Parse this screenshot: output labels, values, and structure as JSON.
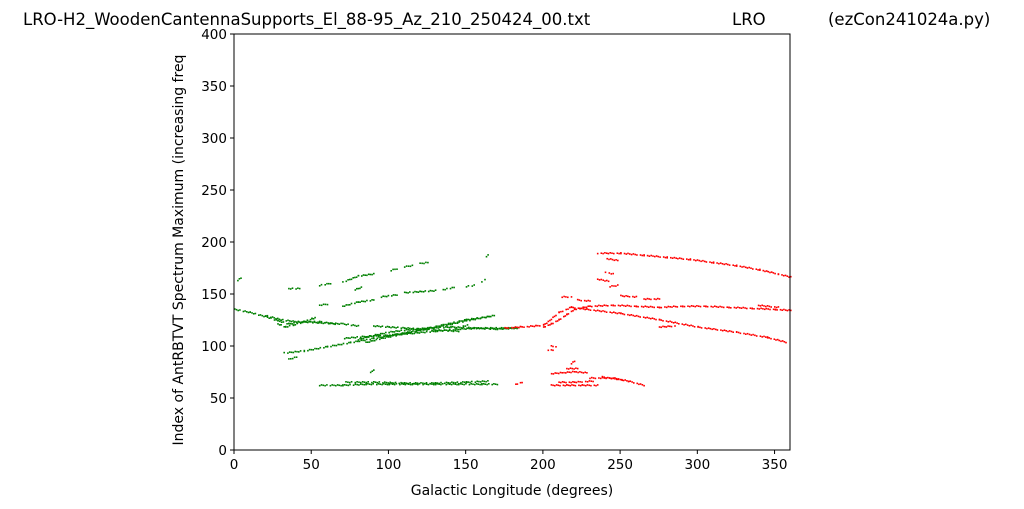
{
  "header": {
    "filename": "LRO-H2_WoodenCantennaSupports_El_88-95_Az_210_250424_00.txt",
    "station": "LRO",
    "program": "(ezCon241024a.py)"
  },
  "chart_data": {
    "type": "scatter",
    "title": "",
    "xlabel": "Galactic Longitude (degrees)",
    "ylabel": "Index of AntRBTVT Spectrum Maximum (increasing freq",
    "xlim": [
      0,
      360
    ],
    "ylim": [
      0,
      400
    ],
    "xticks": [
      0,
      50,
      100,
      150,
      200,
      250,
      300,
      350
    ],
    "yticks": [
      0,
      50,
      100,
      150,
      200,
      250,
      300,
      350,
      400
    ],
    "grid": false,
    "colors": {
      "green": "#008000",
      "red": "#ff0000"
    },
    "series": [
      {
        "color": "green",
        "traces": [
          [
            [
              0,
              136
            ],
            [
              10,
              133
            ],
            [
              20,
              129
            ],
            [
              28,
              125
            ],
            [
              35,
              122
            ],
            [
              45,
              124
            ],
            [
              55,
              123
            ],
            [
              70,
              122
            ],
            [
              80,
              120
            ]
          ],
          [
            [
              28,
              122
            ],
            [
              33,
              119
            ],
            [
              38,
              121
            ],
            [
              45,
              124
            ],
            [
              50,
              127
            ],
            [
              53,
              128
            ]
          ],
          [
            [
              20,
              130
            ],
            [
              30,
              126
            ],
            [
              40,
              124
            ],
            [
              55,
              124
            ],
            [
              65,
              122
            ]
          ],
          [
            [
              32,
              94
            ],
            [
              45,
              96
            ],
            [
              60,
              100
            ],
            [
              75,
              104
            ],
            [
              90,
              108
            ],
            [
              105,
              112
            ],
            [
              120,
              116
            ],
            [
              135,
              120
            ],
            [
              150,
              125
            ],
            [
              168,
              130
            ]
          ],
          [
            [
              70,
              108
            ],
            [
              85,
              110
            ],
            [
              100,
              111
            ],
            [
              115,
              113
            ],
            [
              130,
              115
            ],
            [
              145,
              117
            ],
            [
              160,
              118
            ],
            [
              175,
              118
            ],
            [
              185,
              118
            ]
          ],
          [
            [
              80,
              107
            ],
            [
              90,
              111
            ],
            [
              100,
              114
            ],
            [
              110,
              116
            ],
            [
              125,
              118
            ],
            [
              140,
              119
            ],
            [
              155,
              118
            ],
            [
              170,
              117
            ],
            [
              182,
              118
            ]
          ],
          [
            [
              85,
              104
            ],
            [
              95,
              108
            ],
            [
              108,
              112
            ],
            [
              120,
              116
            ],
            [
              135,
              121
            ],
            [
              150,
              126
            ],
            [
              165,
              129
            ]
          ],
          [
            [
              90,
              120
            ],
            [
              100,
              119
            ],
            [
              110,
              118
            ],
            [
              120,
              117
            ],
            [
              130,
              116
            ],
            [
              145,
              115
            ]
          ],
          [
            [
              55,
              63
            ],
            [
              70,
              63
            ],
            [
              85,
              64
            ],
            [
              100,
              64
            ],
            [
              115,
              64
            ],
            [
              130,
              64
            ],
            [
              145,
              64
            ],
            [
              160,
              64
            ],
            [
              170,
              64
            ]
          ],
          [
            [
              72,
              66
            ],
            [
              90,
              66
            ],
            [
              110,
              65
            ],
            [
              130,
              65
            ],
            [
              150,
              66
            ],
            [
              165,
              67
            ]
          ],
          [
            [
              35,
              156
            ],
            [
              42,
              156
            ]
          ],
          [
            [
              55,
              159
            ],
            [
              62,
              161
            ]
          ],
          [
            [
              70,
              162
            ],
            [
              80,
              168
            ],
            [
              90,
              170
            ]
          ],
          [
            [
              100,
              173
            ],
            [
              105,
              175
            ]
          ],
          [
            [
              110,
              177
            ],
            [
              115,
              178
            ]
          ],
          [
            [
              120,
              180
            ],
            [
              125,
              181
            ]
          ],
          [
            [
              70,
              139
            ],
            [
              80,
              143
            ],
            [
              90,
              145
            ]
          ],
          [
            [
              95,
              148
            ],
            [
              105,
              150
            ]
          ],
          [
            [
              110,
              152
            ],
            [
              120,
              153
            ],
            [
              130,
              154
            ]
          ],
          [
            [
              135,
              155
            ],
            [
              142,
              157
            ]
          ],
          [
            [
              150,
              158
            ],
            [
              155,
              159
            ]
          ],
          [
            [
              160,
              162
            ],
            [
              162,
              165
            ]
          ],
          [
            [
              162,
              186
            ],
            [
              164,
              188
            ]
          ],
          [
            [
              2,
              164
            ],
            [
              4,
              166
            ]
          ],
          [
            [
              35,
              88
            ],
            [
              40,
              90
            ]
          ],
          [
            [
              55,
              140
            ],
            [
              60,
              141
            ]
          ],
          [
            [
              78,
              155
            ],
            [
              82,
              157
            ]
          ],
          [
            [
              88,
              75
            ],
            [
              90,
              78
            ]
          ],
          [
            [
              148,
              120
            ],
            [
              152,
              121
            ]
          ]
        ]
      },
      {
        "color": "red",
        "traces": [
          [
            [
              175,
              118
            ],
            [
              185,
              119
            ],
            [
              195,
              120
            ],
            [
              200,
              121
            ],
            [
              203,
              124
            ],
            [
              206,
              128
            ],
            [
              210,
              133
            ],
            [
              218,
              138
            ],
            [
              228,
              136
            ],
            [
              250,
              132
            ],
            [
              275,
              126
            ],
            [
              300,
              119
            ],
            [
              325,
              114
            ],
            [
              345,
              109
            ],
            [
              358,
              104
            ]
          ],
          [
            [
              200,
              119
            ],
            [
              205,
              122
            ],
            [
              210,
              126
            ],
            [
              215,
              131
            ],
            [
              220,
              136
            ],
            [
              230,
              139
            ],
            [
              245,
              140
            ],
            [
              260,
              139
            ],
            [
              275,
              138
            ],
            [
              290,
              139
            ],
            [
              305,
              139
            ],
            [
              320,
              138
            ],
            [
              335,
              137
            ],
            [
              350,
              136
            ],
            [
              360,
              135
            ]
          ],
          [
            [
              235,
              190
            ],
            [
              250,
              190
            ],
            [
              265,
              188
            ],
            [
              280,
              186
            ],
            [
              295,
              184
            ],
            [
              310,
              181
            ],
            [
              325,
              178
            ],
            [
              340,
              174
            ],
            [
              352,
              170
            ],
            [
              360,
              167
            ]
          ],
          [
            [
              240,
              185
            ],
            [
              248,
              183
            ]
          ],
          [
            [
              235,
              165
            ],
            [
              242,
              163
            ]
          ],
          [
            [
              243,
              158
            ],
            [
              248,
              159
            ]
          ],
          [
            [
              250,
              149
            ],
            [
              260,
              148
            ]
          ],
          [
            [
              265,
              146
            ],
            [
              275,
              146
            ]
          ],
          [
            [
              212,
              148
            ],
            [
              218,
              148
            ]
          ],
          [
            [
              222,
              145
            ],
            [
              230,
              144
            ]
          ],
          [
            [
              205,
              101
            ],
            [
              208,
              100
            ]
          ],
          [
            [
              203,
              97
            ],
            [
              206,
              97
            ]
          ],
          [
            [
              204,
              74
            ],
            [
              212,
              75
            ],
            [
              220,
              76
            ],
            [
              228,
              75
            ]
          ],
          [
            [
              215,
              79
            ],
            [
              222,
              79
            ]
          ],
          [
            [
              218,
              84
            ],
            [
              220,
              86
            ]
          ],
          [
            [
              205,
              63
            ],
            [
              215,
              63
            ],
            [
              225,
              63
            ],
            [
              235,
              63
            ]
          ],
          [
            [
              210,
              66
            ],
            [
              220,
              66
            ],
            [
              232,
              67
            ]
          ],
          [
            [
              230,
              70
            ],
            [
              245,
              70
            ],
            [
              255,
              67
            ],
            [
              265,
              63
            ]
          ],
          [
            [
              238,
              71
            ],
            [
              252,
              68
            ]
          ],
          [
            [
              182,
              64
            ],
            [
              186,
              66
            ]
          ],
          [
            [
              240,
              172
            ],
            [
              245,
              170
            ]
          ],
          [
            [
              338,
              140
            ],
            [
              352,
              138
            ]
          ],
          [
            [
              275,
              119
            ],
            [
              285,
              120
            ]
          ]
        ]
      }
    ]
  }
}
